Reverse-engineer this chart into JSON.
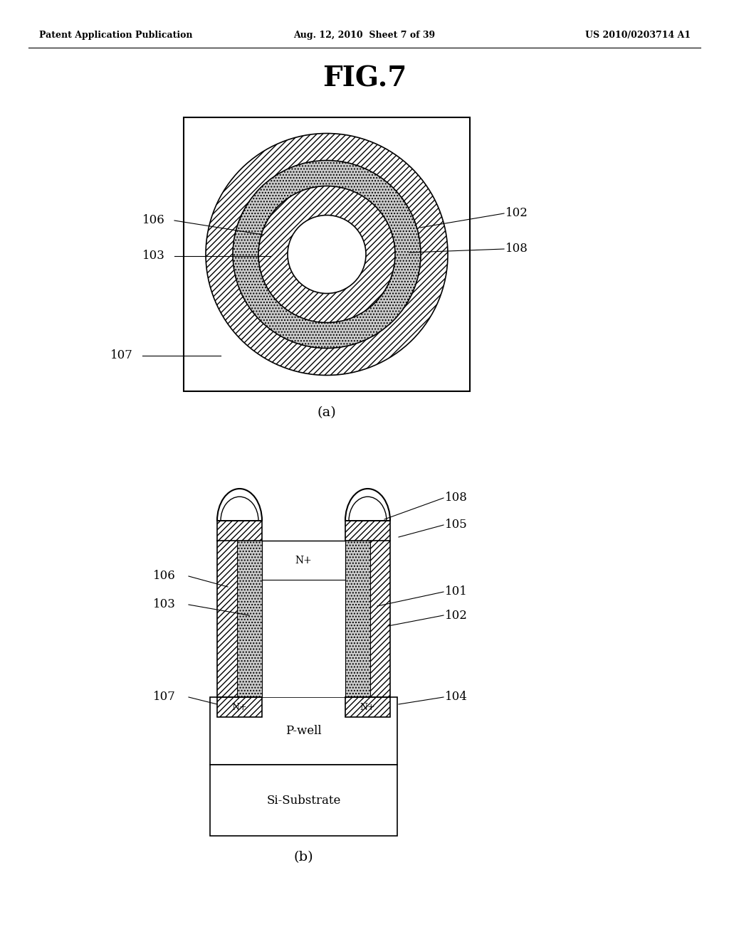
{
  "bg_color": "#ffffff",
  "header_left": "Patent Application Publication",
  "header_center": "Aug. 12, 2010  Sheet 7 of 39",
  "header_right": "US 2010/0203714 A1",
  "fig_title": "FIG.7",
  "label_a": "(a)",
  "label_b": "(b)"
}
